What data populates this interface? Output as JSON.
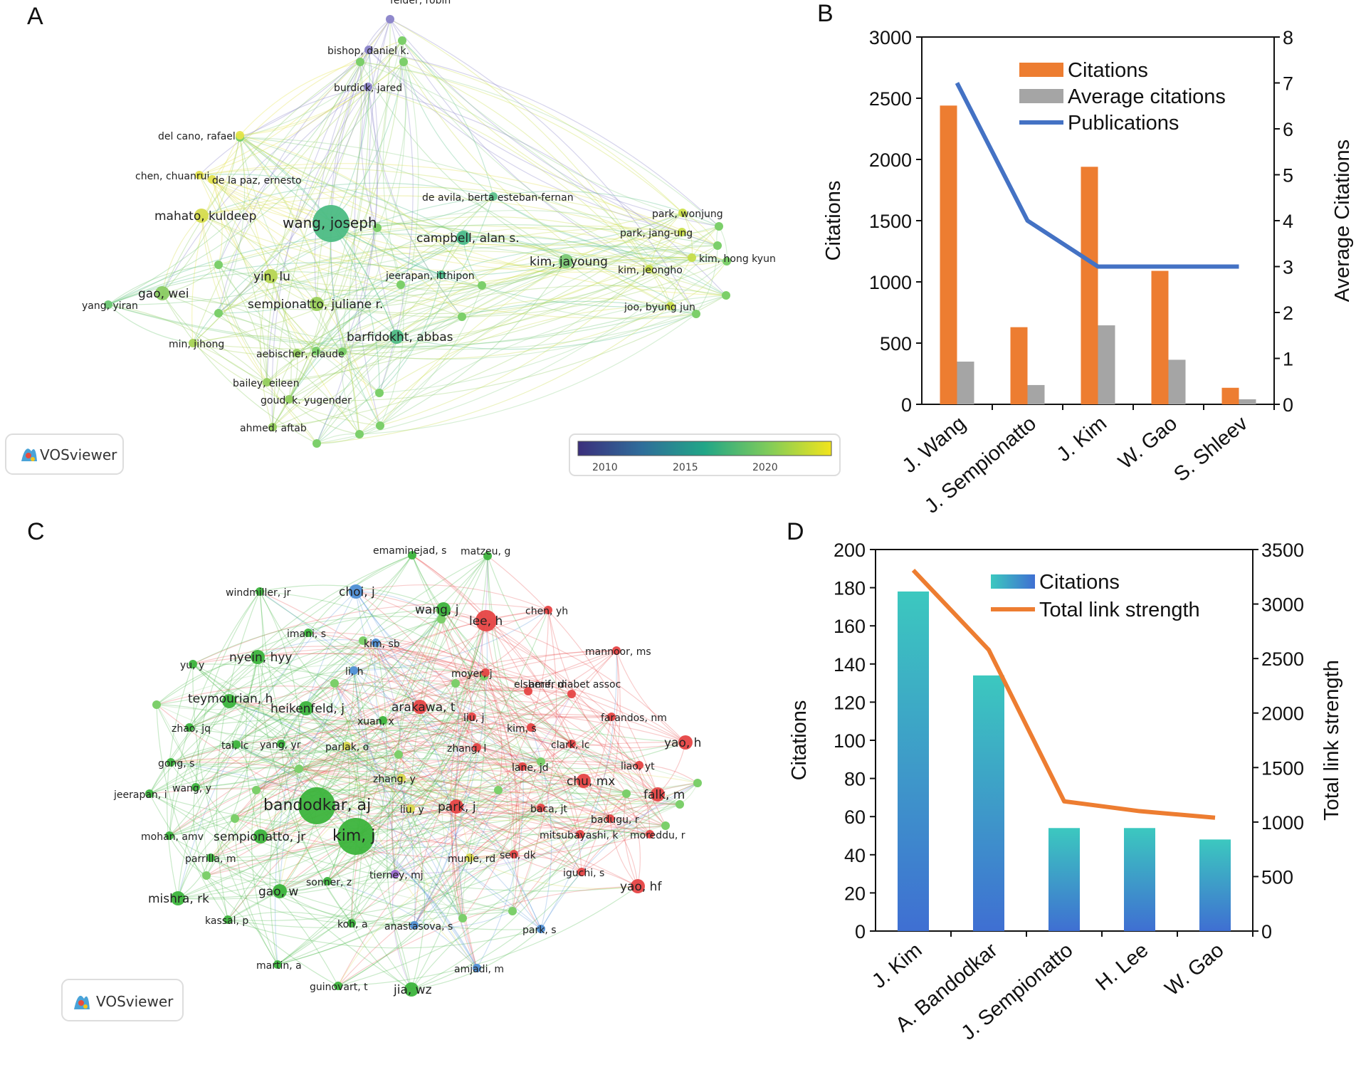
{
  "panels": {
    "A": {
      "label": "A",
      "watermark": "VOSviewer",
      "colorbar": {
        "ticks": [
          "2010",
          "2015",
          "2020"
        ]
      },
      "nodes": [
        {
          "id": "felder",
          "label": "felder, robin",
          "size": "s",
          "color": "#8a83c9"
        },
        {
          "id": "bishop",
          "label": "bishop, daniel k.",
          "size": "s",
          "color": "#8a83c9"
        },
        {
          "id": "burdick",
          "label": "burdick, jared",
          "size": "s",
          "color": "#8a83c9"
        },
        {
          "id": "delcano",
          "label": "del cano, rafael",
          "size": "s",
          "color": "#e5e54a"
        },
        {
          "id": "chen",
          "label": "chen, chuanrui",
          "size": "s",
          "color": "#e2e04c"
        },
        {
          "id": "delapaz",
          "label": "de la paz, ernesto",
          "size": "s",
          "color": "#e2e04c"
        },
        {
          "id": "mahato",
          "label": "mahato, kuldeep",
          "size": "m",
          "color": "#d6dc4e"
        },
        {
          "id": "wangj",
          "label": "wang, joseph",
          "size": "xl",
          "color": "#4cbc84"
        },
        {
          "id": "deavila",
          "label": "de avila, berta esteban-fernan",
          "size": "s",
          "color": "#5cc18a"
        },
        {
          "id": "campbell",
          "label": "campbell, alan s.",
          "size": "m",
          "color": "#4aba8a"
        },
        {
          "id": "kimjay",
          "label": "kim, jayoung",
          "size": "m",
          "color": "#7bc975"
        },
        {
          "id": "parkw",
          "label": "park, wonjung",
          "size": "s",
          "color": "#cce04a"
        },
        {
          "id": "parkj",
          "label": "park, jang-ung",
          "size": "s",
          "color": "#c8de4a"
        },
        {
          "id": "kimhk",
          "label": "kim, hong kyun",
          "size": "s",
          "color": "#c6dd4a"
        },
        {
          "id": "kimjeo",
          "label": "kim, jeongho",
          "size": "s",
          "color": "#c6dd4a"
        },
        {
          "id": "joo",
          "label": "joo, byung jun",
          "size": "s",
          "color": "#c8de4a"
        },
        {
          "id": "yin",
          "label": "yin, lu",
          "size": "m",
          "color": "#b7d653"
        },
        {
          "id": "gao",
          "label": "gao, wei",
          "size": "m",
          "color": "#8acb62"
        },
        {
          "id": "yang",
          "label": "yang, yiran",
          "size": "s",
          "color": "#6cc673"
        },
        {
          "id": "semp",
          "label": "sempionatto, juliane r.",
          "size": "m",
          "color": "#9ad05b"
        },
        {
          "id": "jeer",
          "label": "jeerapan, itthipon",
          "size": "s",
          "color": "#4cbc8a"
        },
        {
          "id": "barf",
          "label": "barfidokht, abbas",
          "size": "m",
          "color": "#4fbc86"
        },
        {
          "id": "min",
          "label": "min, jihong",
          "size": "s",
          "color": "#a6d356"
        },
        {
          "id": "aeb",
          "label": "aebischer, claude",
          "size": "s",
          "color": "#94cd5c"
        },
        {
          "id": "bailey",
          "label": "bailey, eileen",
          "size": "s",
          "color": "#94cd5c"
        },
        {
          "id": "goud",
          "label": "goud, k. yugender",
          "size": "s",
          "color": "#90cc5e"
        },
        {
          "id": "ahmed",
          "label": "ahmed, aftab",
          "size": "s",
          "color": "#94cd5c"
        }
      ]
    },
    "B": {
      "label": "B",
      "chart_data": {
        "type": "bar",
        "categories": [
          "J. Wang",
          "J. Sempionatto",
          "J. Kim",
          "W. Gao",
          "S. Shleev"
        ],
        "series": [
          {
            "name": "Citations",
            "axis": "left",
            "kind": "bar",
            "color": "#ed7d31",
            "values": [
              2440,
              630,
              1940,
              1090,
              135
            ]
          },
          {
            "name": "Average citations",
            "axis": "right",
            "kind": "bar",
            "color": "#a5a5a5",
            "values": [
              0.93,
              0.42,
              1.72,
              0.97,
              0.11
            ]
          },
          {
            "name": "Publications",
            "axis": "right",
            "kind": "line",
            "color": "#4472c4",
            "values": [
              7,
              4,
              3,
              3,
              3
            ]
          }
        ],
        "ylabel": "Citations",
        "y2label": "Average Citations",
        "ylim": [
          0,
          3000
        ],
        "y2lim": [
          0,
          8
        ],
        "yticks": [
          "0",
          "500",
          "1000",
          "1500",
          "2000",
          "2500",
          "3000"
        ],
        "y2ticks": [
          "0",
          "1",
          "2",
          "3",
          "4",
          "5",
          "6",
          "7",
          "8"
        ],
        "legend": [
          "Citations",
          "Average citations",
          "Publications"
        ],
        "legend_position": "top-right"
      }
    },
    "C": {
      "label": "C",
      "watermark": "VOSviewer",
      "nodes": [
        {
          "id": "emam",
          "label": "emaminejad, s",
          "size": "s",
          "color": "#3cb43c"
        },
        {
          "id": "matzeu",
          "label": "matzeu, g",
          "size": "s",
          "color": "#3cb43c"
        },
        {
          "id": "windm",
          "label": "windmiller, jr",
          "size": "s",
          "color": "#3cb43c"
        },
        {
          "id": "choi",
          "label": "choi, j",
          "size": "m",
          "color": "#4f8fd6"
        },
        {
          "id": "wangj",
          "label": "wang, j",
          "size": "m",
          "color": "#3cb43c"
        },
        {
          "id": "lee",
          "label": "lee, h",
          "size": "l",
          "color": "#e64545"
        },
        {
          "id": "chenyh",
          "label": "chen, yh",
          "size": "s",
          "color": "#e64545"
        },
        {
          "id": "imani",
          "label": "imani, s",
          "size": "s",
          "color": "#3cb43c"
        },
        {
          "id": "kimsb",
          "label": "kim, sb",
          "size": "s",
          "color": "#4f8fd6"
        },
        {
          "id": "mannoor",
          "label": "mannoor, ms",
          "size": "s",
          "color": "#e64545"
        },
        {
          "id": "yuy",
          "label": "yu, y",
          "size": "s",
          "color": "#3cb43c"
        },
        {
          "id": "nyein",
          "label": "nyein, hyy",
          "size": "m",
          "color": "#3cb43c"
        },
        {
          "id": "lih",
          "label": "li, h",
          "size": "s",
          "color": "#4f8fd6"
        },
        {
          "id": "moyer",
          "label": "moyer, j",
          "size": "s",
          "color": "#e64545"
        },
        {
          "id": "elsherif",
          "label": "elsherif, m",
          "size": "s",
          "color": "#e64545"
        },
        {
          "id": "amer",
          "label": "amer diabet assoc",
          "size": "s",
          "color": "#e64545"
        },
        {
          "id": "teym",
          "label": "teymourian, h",
          "size": "m",
          "color": "#3cb43c"
        },
        {
          "id": "heik",
          "label": "heikenfeld, j",
          "size": "m",
          "color": "#3cb43c"
        },
        {
          "id": "arak",
          "label": "arakawa, t",
          "size": "m",
          "color": "#e64545"
        },
        {
          "id": "liuj",
          "label": "liu, j",
          "size": "s",
          "color": "#e64545"
        },
        {
          "id": "farandos",
          "label": "farandos, nm",
          "size": "s",
          "color": "#e64545"
        },
        {
          "id": "zhaojq",
          "label": "zhao, jq",
          "size": "s",
          "color": "#3cb43c"
        },
        {
          "id": "xuan",
          "label": "xuan, x",
          "size": "s",
          "color": "#3cb43c"
        },
        {
          "id": "kims",
          "label": "kim, s",
          "size": "s",
          "color": "#e64545"
        },
        {
          "id": "taic",
          "label": "tai, lc",
          "size": "s",
          "color": "#3cb43c"
        },
        {
          "id": "yangyr",
          "label": "yang, yr",
          "size": "s",
          "color": "#3cb43c"
        },
        {
          "id": "parlak",
          "label": "parlak, o",
          "size": "s",
          "color": "#d8d84c"
        },
        {
          "id": "zhangl",
          "label": "zhang, l",
          "size": "s",
          "color": "#e64545"
        },
        {
          "id": "clark",
          "label": "clark, lc",
          "size": "s",
          "color": "#e64545"
        },
        {
          "id": "yaoh",
          "label": "yao, h",
          "size": "m",
          "color": "#e64545"
        },
        {
          "id": "gongs",
          "label": "gong, s",
          "size": "s",
          "color": "#3cb43c"
        },
        {
          "id": "lanejd",
          "label": "lane, jd",
          "size": "s",
          "color": "#e64545"
        },
        {
          "id": "liaoyt",
          "label": "liao, yt",
          "size": "s",
          "color": "#e64545"
        },
        {
          "id": "zhangy",
          "label": "zhang, y",
          "size": "s",
          "color": "#d8d84c"
        },
        {
          "id": "chumx",
          "label": "chu, mx",
          "size": "m",
          "color": "#e64545"
        },
        {
          "id": "jeerapan",
          "label": "jeerapan, i",
          "size": "s",
          "color": "#3cb43c"
        },
        {
          "id": "wangy",
          "label": "wang, y",
          "size": "s",
          "color": "#3cb43c"
        },
        {
          "id": "falk",
          "label": "falk, m",
          "size": "m",
          "color": "#e64545"
        },
        {
          "id": "bandodkar",
          "label": "bandodkar, aj",
          "size": "xl",
          "color": "#3cb43c"
        },
        {
          "id": "liuy",
          "label": "liu, y",
          "size": "s",
          "color": "#d8d84c"
        },
        {
          "id": "parkj",
          "label": "park, j",
          "size": "m",
          "color": "#e64545"
        },
        {
          "id": "baca",
          "label": "baca, jt",
          "size": "s",
          "color": "#e64545"
        },
        {
          "id": "badugu",
          "label": "badugu, r",
          "size": "s",
          "color": "#e64545"
        },
        {
          "id": "mohan",
          "label": "mohan, amv",
          "size": "s",
          "color": "#3cb43c"
        },
        {
          "id": "semp",
          "label": "sempionatto, jr",
          "size": "m",
          "color": "#3cb43c"
        },
        {
          "id": "kimj",
          "label": "kim, j",
          "size": "xl",
          "color": "#3cb43c"
        },
        {
          "id": "mitsu",
          "label": "mitsubayashi, k",
          "size": "s",
          "color": "#e64545"
        },
        {
          "id": "moreddu",
          "label": "moreddu, r",
          "size": "s",
          "color": "#e64545"
        },
        {
          "id": "parrilla",
          "label": "parrilla, m",
          "size": "s",
          "color": "#3cb43c"
        },
        {
          "id": "munje",
          "label": "munje, rd",
          "size": "s",
          "color": "#d8d84c"
        },
        {
          "id": "sendk",
          "label": "sen, dk",
          "size": "s",
          "color": "#e64545"
        },
        {
          "id": "tierney",
          "label": "tierney, mj",
          "size": "s",
          "color": "#9c6bd2"
        },
        {
          "id": "sonner",
          "label": "sonner, z",
          "size": "s",
          "color": "#3cb43c"
        },
        {
          "id": "iguchi",
          "label": "iguchi, s",
          "size": "s",
          "color": "#e64545"
        },
        {
          "id": "mishra",
          "label": "mishra, rk",
          "size": "m",
          "color": "#3cb43c"
        },
        {
          "id": "gaow",
          "label": "gao, w",
          "size": "m",
          "color": "#3cb43c"
        },
        {
          "id": "yaohf",
          "label": "yao, hf",
          "size": "m",
          "color": "#e64545"
        },
        {
          "id": "kassal",
          "label": "kassal, p",
          "size": "s",
          "color": "#3cb43c"
        },
        {
          "id": "koha",
          "label": "koh, a",
          "size": "s",
          "color": "#3cb43c"
        },
        {
          "id": "anast",
          "label": "anastasova, s",
          "size": "s",
          "color": "#4f8fd6"
        },
        {
          "id": "parks",
          "label": "park, s",
          "size": "s",
          "color": "#4f8fd6"
        },
        {
          "id": "martin",
          "label": "martin, a",
          "size": "s",
          "color": "#3cb43c"
        },
        {
          "id": "amjadi",
          "label": "amjadi, m",
          "size": "s",
          "color": "#4f8fd6"
        },
        {
          "id": "guinovart",
          "label": "guinovart, t",
          "size": "s",
          "color": "#3cb43c"
        },
        {
          "id": "jiawz",
          "label": "jia, wz",
          "size": "m",
          "color": "#3cb43c"
        }
      ]
    },
    "D": {
      "label": "D",
      "chart_data": {
        "type": "bar",
        "categories": [
          "J. Kim",
          "A. Bandodkar",
          "J. Sempionatto",
          "H. Lee",
          "W. Gao"
        ],
        "series": [
          {
            "name": "Citations",
            "axis": "left",
            "kind": "bar",
            "color": "#3fc7c2",
            "values": [
              178,
              134,
              54,
              54,
              48
            ]
          },
          {
            "name": "Total link strength",
            "axis": "right",
            "kind": "line",
            "color": "#ed7d31",
            "values": [
              3310,
              2580,
              1190,
              1100,
              1040
            ]
          }
        ],
        "ylabel": "Citations",
        "y2label": "Total link strength",
        "ylim": [
          0,
          200
        ],
        "y2lim": [
          0,
          3500
        ],
        "yticks": [
          "0",
          "20",
          "40",
          "60",
          "80",
          "100",
          "120",
          "140",
          "160",
          "180",
          "200"
        ],
        "y2ticks": [
          "0",
          "500",
          "1000",
          "1500",
          "2000",
          "2500",
          "3000",
          "3500"
        ],
        "legend": [
          "Citations",
          "Total link strength"
        ],
        "legend_position": "top-right"
      }
    }
  }
}
